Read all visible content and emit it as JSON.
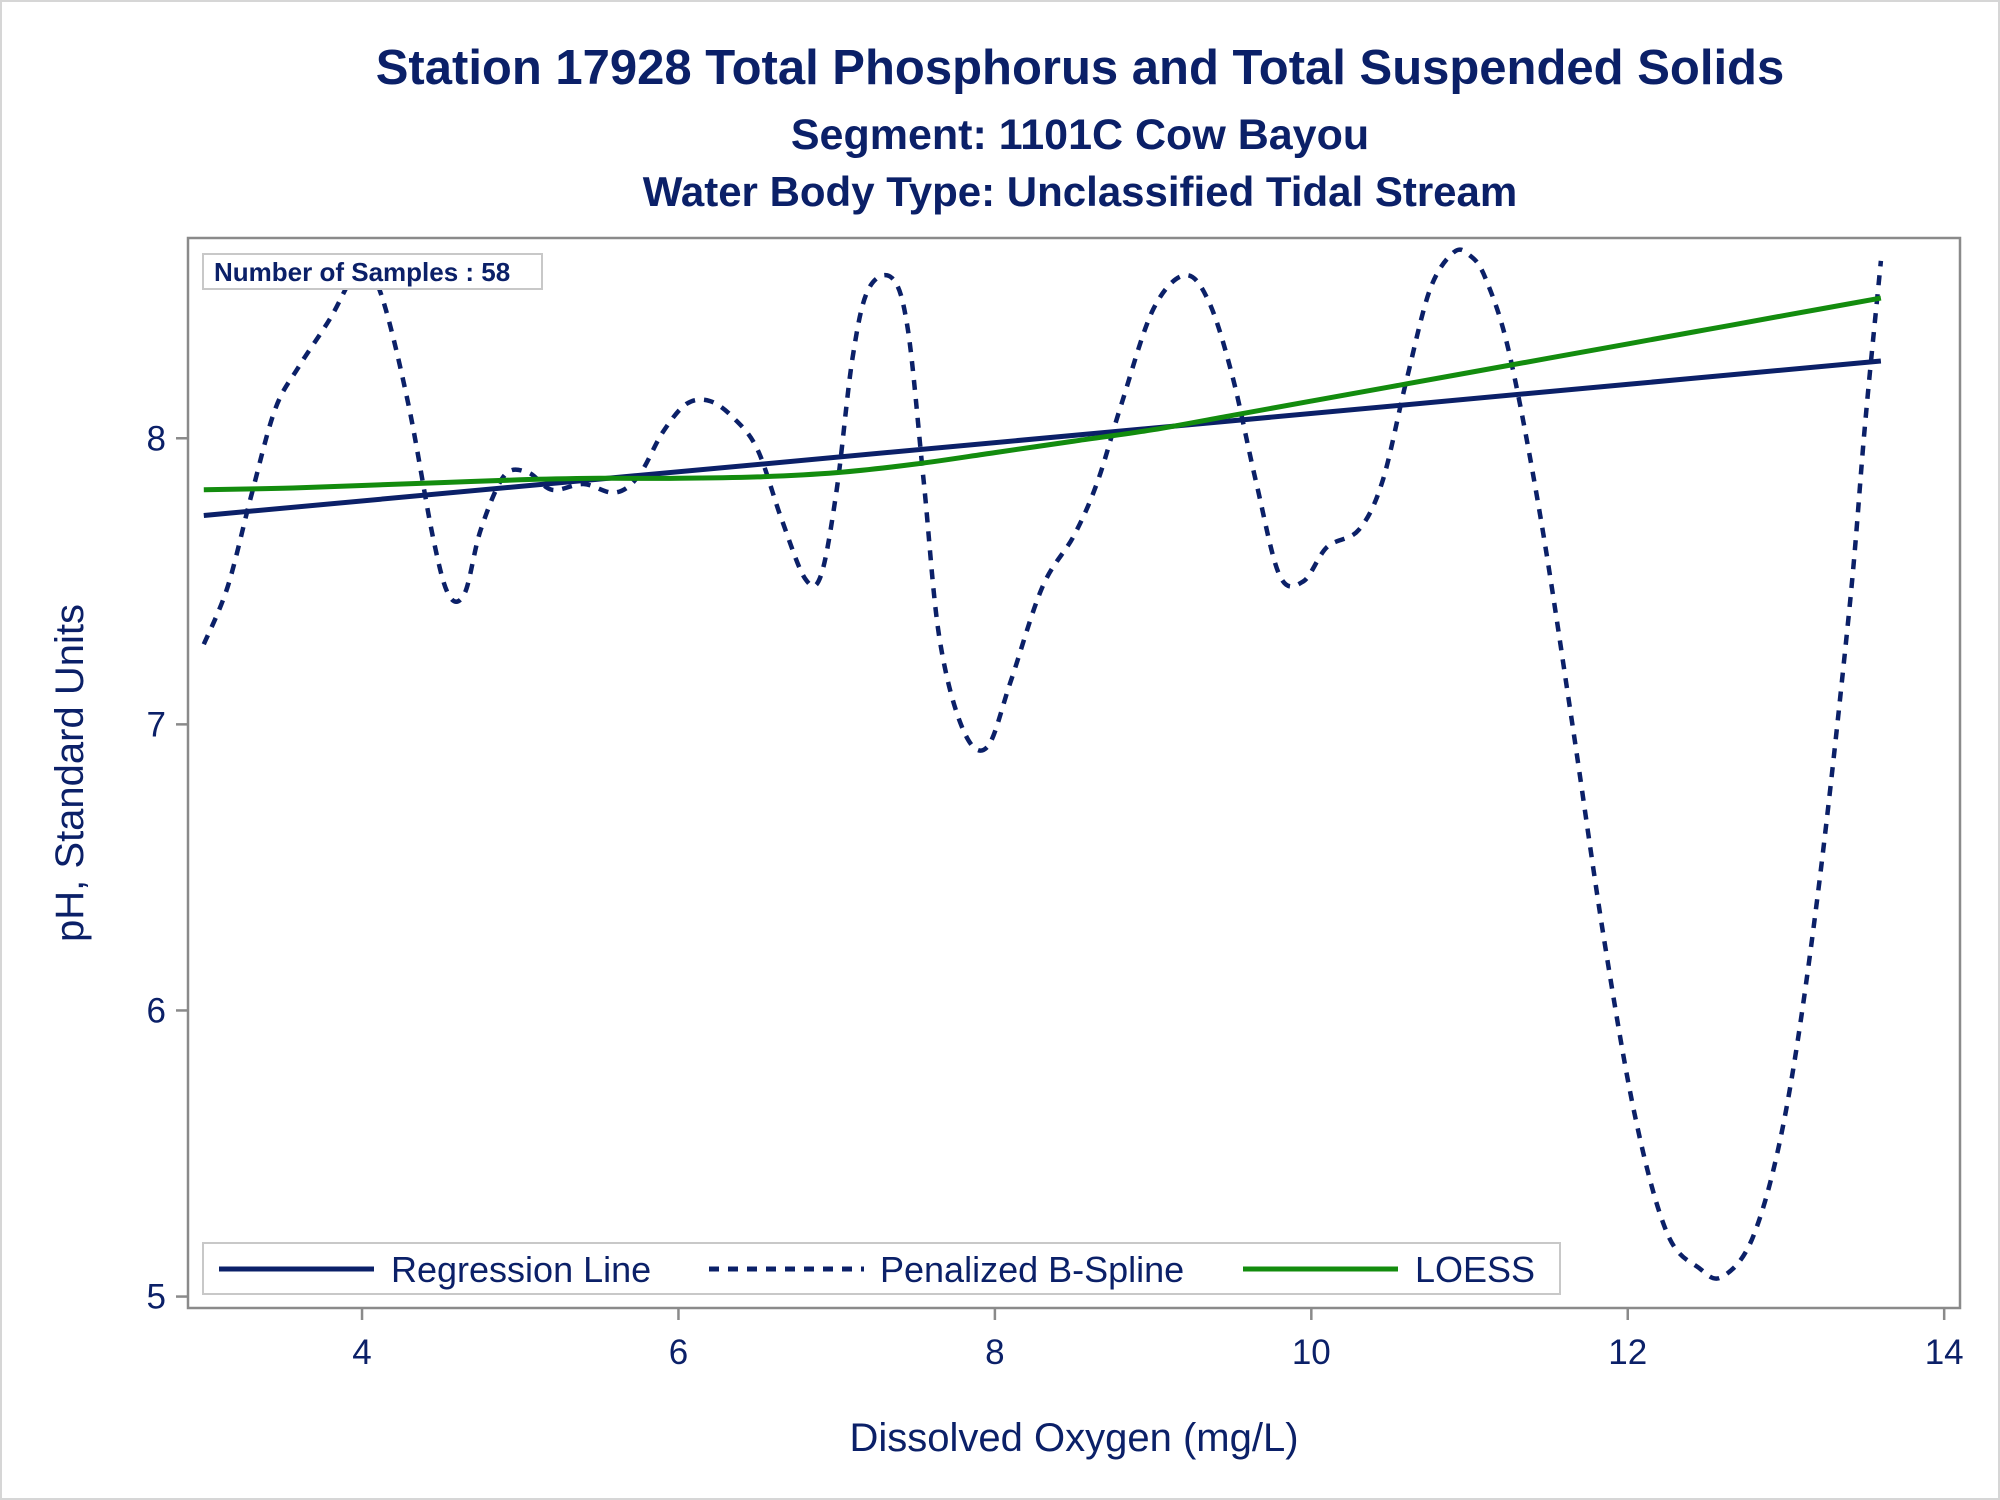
{
  "titles": {
    "line1": "Station 17928  Total Phosphorus and Total Suspended Solids",
    "line2": "Segment: 1101C  Cow Bayou",
    "line3": "Water Body Type: Unclassified Tidal Stream"
  },
  "annotation": "Number of Samples : 58",
  "colors": {
    "navy": "#0b2068",
    "green": "#138c0e",
    "axis": "#8a8a8a",
    "legend_border": "#c8c8c8"
  },
  "chart_data": {
    "type": "line",
    "title": "Station 17928  Total Phosphorus and Total Suspended Solids",
    "subtitle": "Segment: 1101C  Cow Bayou",
    "subtitle2": "Water Body Type: Unclassified Tidal Stream",
    "xlabel": "Dissolved Oxygen (mg/L)",
    "ylabel": "pH, Standard Units",
    "xlim": [
      2.9,
      14.1
    ],
    "ylim": [
      4.96,
      8.7
    ],
    "xticks": [
      4,
      6,
      8,
      10,
      12,
      14
    ],
    "yticks": [
      5,
      6,
      7,
      8
    ],
    "grid": false,
    "legend_position": "bottom-inside",
    "series": [
      {
        "name": "Regression Line",
        "style": "solid",
        "color": "#0b2068",
        "x": [
          3.0,
          13.6
        ],
        "y": [
          7.73,
          8.27
        ]
      },
      {
        "name": "Penalized B-Spline",
        "style": "dashed",
        "color": "#0b2068",
        "x": [
          3.0,
          3.15,
          3.3,
          3.45,
          3.6,
          3.8,
          3.95,
          4.05,
          4.15,
          4.3,
          4.45,
          4.55,
          4.65,
          4.75,
          4.9,
          5.05,
          5.2,
          5.4,
          5.6,
          5.75,
          5.9,
          6.05,
          6.2,
          6.35,
          6.5,
          6.65,
          6.8,
          6.9,
          7.0,
          7.1,
          7.2,
          7.35,
          7.45,
          7.55,
          7.65,
          7.8,
          7.95,
          8.1,
          8.3,
          8.5,
          8.65,
          8.8,
          9.0,
          9.2,
          9.35,
          9.5,
          9.65,
          9.8,
          9.95,
          10.1,
          10.3,
          10.45,
          10.6,
          10.75,
          10.9,
          11.0,
          11.1,
          11.25,
          11.45,
          11.65,
          11.85,
          12.05,
          12.25,
          12.45,
          12.6,
          12.8,
          13.0,
          13.2,
          13.4,
          13.5,
          13.6
        ],
        "y": [
          7.28,
          7.48,
          7.8,
          8.1,
          8.25,
          8.42,
          8.57,
          8.58,
          8.45,
          8.1,
          7.65,
          7.45,
          7.46,
          7.68,
          7.87,
          7.88,
          7.82,
          7.84,
          7.81,
          7.87,
          8.02,
          8.12,
          8.13,
          8.07,
          7.96,
          7.72,
          7.51,
          7.52,
          7.82,
          8.28,
          8.52,
          8.56,
          8.38,
          7.85,
          7.3,
          6.98,
          6.92,
          7.15,
          7.48,
          7.66,
          7.85,
          8.12,
          8.45,
          8.57,
          8.48,
          8.22,
          7.85,
          7.52,
          7.5,
          7.62,
          7.68,
          7.85,
          8.2,
          8.52,
          8.65,
          8.64,
          8.56,
          8.3,
          7.72,
          7.0,
          6.25,
          5.62,
          5.22,
          5.1,
          5.07,
          5.22,
          5.65,
          6.4,
          7.4,
          8.05,
          8.62
        ]
      },
      {
        "name": "LOESS",
        "style": "solid",
        "color": "#138c0e",
        "x": [
          3.0,
          3.5,
          4.0,
          4.5,
          5.0,
          5.5,
          6.0,
          6.5,
          7.0,
          7.5,
          8.0,
          8.5,
          9.0,
          9.5,
          10.0,
          10.5,
          11.0,
          11.5,
          12.0,
          12.5,
          13.0,
          13.6
        ],
        "y": [
          7.82,
          7.825,
          7.835,
          7.845,
          7.855,
          7.86,
          7.86,
          7.865,
          7.88,
          7.91,
          7.95,
          7.99,
          8.03,
          8.08,
          8.13,
          8.18,
          8.23,
          8.28,
          8.33,
          8.38,
          8.43,
          8.49
        ]
      }
    ]
  }
}
